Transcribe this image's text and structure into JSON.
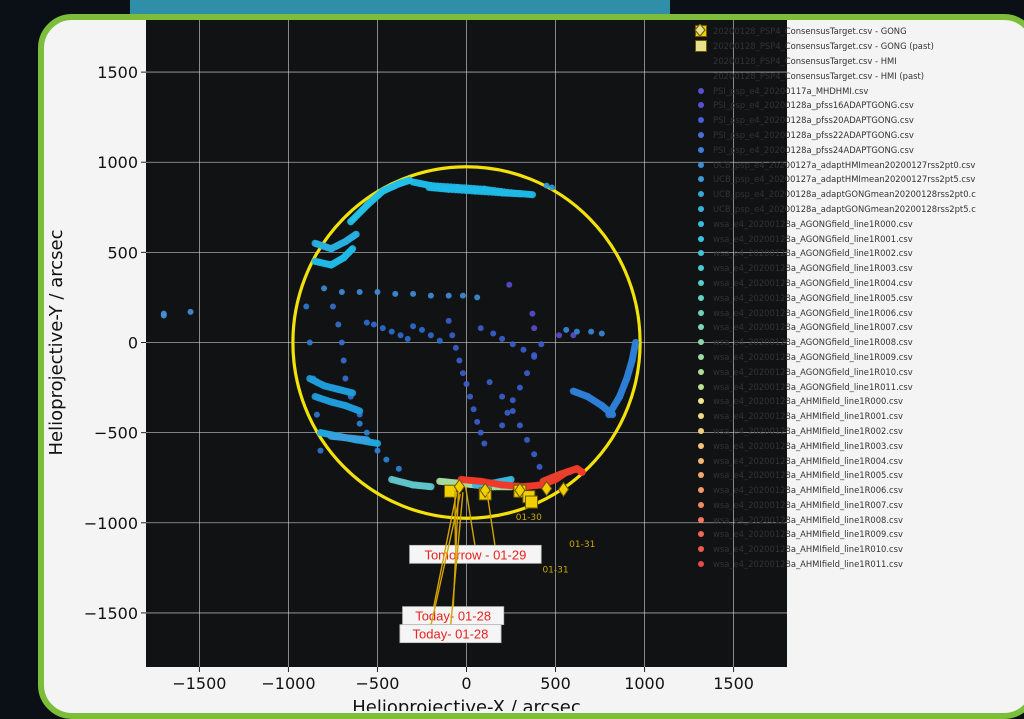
{
  "chart_data": {
    "type": "scatter",
    "xlabel": "Helioprojective-X / arcsec",
    "ylabel": "Helioprojective-Y / arcsec",
    "xlim": [
      -1800,
      1800
    ],
    "ylim": [
      -1800,
      1800
    ],
    "xticks": [
      "−1500",
      "−1000",
      "−500",
      "0",
      "500",
      "1000",
      "1500"
    ],
    "xtick_values": [
      -1500,
      -1000,
      -500,
      0,
      500,
      1000,
      1500
    ],
    "yticks": [
      "1500",
      "1000",
      "500",
      "0",
      "−500",
      "−1000",
      "−1500"
    ],
    "ytick_values": [
      1500,
      1000,
      500,
      0,
      -500,
      -1000,
      -1500
    ],
    "sun_radius": 975,
    "grid": true,
    "legend_position": "right, outside",
    "legend": [
      {
        "label": "20200128_PSP4_ConsensusTarget.csv - GONG",
        "color": "#f2d000",
        "marker": "square"
      },
      {
        "label": "20200128_PSP4_ConsensusTarget.csv - GONG (past)",
        "color": "#e8e08a",
        "marker": "square"
      },
      {
        "label": "20200128_PSP4_ConsensusTarget.csv - HMI",
        "color": "#f2d000",
        "marker": "diamond"
      },
      {
        "label": "20200128_PSP4_ConsensusTarget.csv - HMI (past)",
        "color": "#e8e08a",
        "marker": "diamond"
      },
      {
        "label": "PSI_psp_e4_20200117a_MHDHMI.csv",
        "color": "#5a4fcf",
        "marker": "dot"
      },
      {
        "label": "PSI_psp_e4_20200128a_pfss16ADAPTGONG.csv",
        "color": "#5a4fcf",
        "marker": "dot"
      },
      {
        "label": "PSI_psp_e4_20200128a_pfss20ADAPTGONG.csv",
        "color": "#4a5fd6",
        "marker": "dot"
      },
      {
        "label": "PSI_psp_e4_20200128a_pfss22ADAPTGONG.csv",
        "color": "#4a6fd6",
        "marker": "dot"
      },
      {
        "label": "PSI_psp_e4_20200128a_pfss24ADAPTGONG.csv",
        "color": "#3f7fd6",
        "marker": "dot"
      },
      {
        "label": "UCB_psp_e4_20200127a_adaptHMImean20200127rss2pt0.csv",
        "color": "#3d8ed8",
        "marker": "dot"
      },
      {
        "label": "UCB_psp_e4_20200127a_adaptHMImean20200127rss2pt5.csv",
        "color": "#3a9bda",
        "marker": "dot"
      },
      {
        "label": "UCB_psp_e4_20200128a_adaptGONGmean20200128rss2pt0.c",
        "color": "#3aa6dc",
        "marker": "dot"
      },
      {
        "label": "UCB_psp_e4_20200128a_adaptGONGmean20200128rss2pt5.c",
        "color": "#38b2de",
        "marker": "dot"
      },
      {
        "label": "wsa_e4_20200128a_AGONGfield_line1R000.csv",
        "color": "#36bde0",
        "marker": "dot"
      },
      {
        "label": "wsa_e4_20200128a_AGONGfield_line1R001.csv",
        "color": "#38c4de",
        "marker": "dot"
      },
      {
        "label": "wsa_e4_20200128a_AGONGfield_line1R002.csv",
        "color": "#40c8d8",
        "marker": "dot"
      },
      {
        "label": "wsa_e4_20200128a_AGONGfield_line1R003.csv",
        "color": "#4accd2",
        "marker": "dot"
      },
      {
        "label": "wsa_e4_20200128a_AGONGfield_line1R004.csv",
        "color": "#56d0cc",
        "marker": "dot"
      },
      {
        "label": "wsa_e4_20200128a_AGONGfield_line1R005.csv",
        "color": "#62d2c4",
        "marker": "dot"
      },
      {
        "label": "wsa_e4_20200128a_AGONGfield_line1R006.csv",
        "color": "#70d4bc",
        "marker": "dot"
      },
      {
        "label": "wsa_e4_20200128a_AGONGfield_line1R007.csv",
        "color": "#80d6b4",
        "marker": "dot"
      },
      {
        "label": "wsa_e4_20200128a_AGONGfield_line1R008.csv",
        "color": "#90d8ac",
        "marker": "dot"
      },
      {
        "label": "wsa_e4_20200128a_AGONGfield_line1R009.csv",
        "color": "#a0daa4",
        "marker": "dot"
      },
      {
        "label": "wsa_e4_20200128a_AGONGfield_line1R010.csv",
        "color": "#b0dc9c",
        "marker": "dot"
      },
      {
        "label": "wsa_e4_20200128a_AGONGfield_line1R011.csv",
        "color": "#c0de94",
        "marker": "dot"
      },
      {
        "label": "wsa_e4_20200128a_AHMIfield_line1R000.csv",
        "color": "#f0e68a",
        "marker": "dot"
      },
      {
        "label": "wsa_e4_20200128a_AHMIfield_line1R001.csv",
        "color": "#f2dc84",
        "marker": "dot"
      },
      {
        "label": "wsa_e4_20200128a_AHMIfield_line1R002.csv",
        "color": "#f4d07e",
        "marker": "dot"
      },
      {
        "label": "wsa_e4_20200128a_AHMIfield_line1R003.csv",
        "color": "#f5c478",
        "marker": "dot"
      },
      {
        "label": "wsa_e4_20200128a_AHMIfield_line1R004.csv",
        "color": "#f6b672",
        "marker": "dot"
      },
      {
        "label": "wsa_e4_20200128a_AHMIfield_line1R005.csv",
        "color": "#f6a86c",
        "marker": "dot"
      },
      {
        "label": "wsa_e4_20200128a_AHMIfield_line1R006.csv",
        "color": "#f59a66",
        "marker": "dot"
      },
      {
        "label": "wsa_e4_20200128a_AHMIfield_line1R007.csv",
        "color": "#f48a60",
        "marker": "dot"
      },
      {
        "label": "wsa_e4_20200128a_AHMIfield_line1R008.csv",
        "color": "#f27a5a",
        "marker": "dot"
      },
      {
        "label": "wsa_e4_20200128a_AHMIfield_line1R009.csv",
        "color": "#f06a54",
        "marker": "dot"
      },
      {
        "label": "wsa_e4_20200128a_AHMIfield_line1R010.csv",
        "color": "#ee5a4e",
        "marker": "dot"
      },
      {
        "label": "wsa_e4_20200128a_AHMIfield_line1R011.csv",
        "color": "#ec4848",
        "marker": "dot"
      }
    ],
    "targets": [
      {
        "label": "Tomorrow - 01-29",
        "x": 50,
        "y": -1175,
        "anchor_x": [
          -65,
          -5,
          115
        ],
        "anchor_y": [
          -820,
          -800,
          -830
        ]
      },
      {
        "label": "Today- 01-28",
        "x": -75,
        "y": -1515,
        "anchor_x": [
          -55,
          -45
        ],
        "anchor_y": [
          -830,
          -830
        ]
      },
      {
        "label": "Today- 01-28",
        "x": -90,
        "y": -1615,
        "anchor_x": [
          -35,
          -20
        ],
        "anchor_y": [
          -840,
          -830
        ]
      }
    ],
    "date_labels": [
      {
        "text": "01-30",
        "x": 350,
        "y": -985
      },
      {
        "text": "01-31",
        "x": 650,
        "y": -1135
      },
      {
        "text": "01-31",
        "x": 500,
        "y": -1275
      }
    ],
    "squares": [
      [
        -90,
        -825
      ],
      [
        105,
        -840
      ],
      [
        300,
        -825
      ],
      [
        350,
        -855
      ],
      [
        365,
        -885
      ]
    ],
    "diamonds": [
      [
        -40,
        -800
      ],
      [
        105,
        -820
      ],
      [
        300,
        -820
      ],
      [
        450,
        -810
      ],
      [
        545,
        -815
      ]
    ],
    "tracks": [
      {
        "color": "#1fb8e6",
        "points": [
          [
            -300,
            890
          ],
          [
            -200,
            870
          ],
          [
            -50,
            860
          ],
          [
            100,
            850
          ],
          [
            250,
            830
          ],
          [
            370,
            820
          ]
        ]
      },
      {
        "color": "#1fb8e6",
        "points": [
          [
            -210,
            860
          ],
          [
            -100,
            850
          ],
          [
            50,
            840
          ],
          [
            200,
            830
          ],
          [
            300,
            825
          ]
        ]
      },
      {
        "color": "#23c0e8",
        "points": [
          [
            -650,
            670
          ],
          [
            -560,
            760
          ],
          [
            -470,
            840
          ],
          [
            -380,
            880
          ],
          [
            -320,
            900
          ]
        ]
      },
      {
        "color": "#29aee0",
        "points": [
          [
            -850,
            550
          ],
          [
            -760,
            520
          ],
          [
            -680,
            560
          ],
          [
            -620,
            600
          ]
        ]
      },
      {
        "color": "#1fb8e6",
        "points": [
          [
            -850,
            450
          ],
          [
            -760,
            430
          ],
          [
            -690,
            470
          ],
          [
            -640,
            520
          ]
        ]
      },
      {
        "color": "#1e9bd8",
        "points": [
          [
            -880,
            -200
          ],
          [
            -800,
            -240
          ],
          [
            -720,
            -260
          ],
          [
            -640,
            -280
          ]
        ]
      },
      {
        "color": "#1e9bd8",
        "points": [
          [
            -850,
            -300
          ],
          [
            -760,
            -330
          ],
          [
            -680,
            -350
          ],
          [
            -600,
            -380
          ]
        ]
      },
      {
        "color": "#1ea8e0",
        "points": [
          [
            -820,
            -500
          ],
          [
            -720,
            -520
          ],
          [
            -620,
            -540
          ],
          [
            -500,
            -560
          ]
        ]
      },
      {
        "color": "#5fc4c8",
        "points": [
          [
            -420,
            -760
          ],
          [
            -300,
            -790
          ],
          [
            -200,
            -800
          ]
        ]
      },
      {
        "color": "#a8dba0",
        "points": [
          [
            -150,
            -770
          ],
          [
            -50,
            -780
          ],
          [
            50,
            -790
          ],
          [
            150,
            -800
          ],
          [
            250,
            -800
          ]
        ]
      },
      {
        "color": "#36b8e0",
        "points": [
          [
            50,
            -790
          ],
          [
            150,
            -780
          ],
          [
            250,
            -760
          ]
        ]
      },
      {
        "color": "#f03a2a",
        "points": [
          [
            -30,
            -760
          ],
          [
            80,
            -770
          ],
          [
            200,
            -790
          ],
          [
            320,
            -800
          ],
          [
            420,
            -790
          ],
          [
            500,
            -760
          ],
          [
            560,
            -720
          ],
          [
            620,
            -700
          ],
          [
            650,
            -720
          ]
        ]
      },
      {
        "color": "#e8402e",
        "points": [
          [
            430,
            -770
          ],
          [
            480,
            -750
          ],
          [
            530,
            -730
          ],
          [
            580,
            -715
          ]
        ]
      },
      {
        "color": "#2e7fd6",
        "points": [
          [
            800,
            -400
          ],
          [
            860,
            -300
          ],
          [
            900,
            -200
          ],
          [
            930,
            -100
          ],
          [
            950,
            0
          ]
        ]
      },
      {
        "color": "#2e7fd6",
        "points": [
          [
            600,
            -270
          ],
          [
            680,
            -300
          ],
          [
            760,
            -350
          ],
          [
            820,
            -400
          ]
        ]
      },
      {
        "color": "#3aa0dc",
        "points": [
          [
            -760,
            -520
          ],
          [
            -660,
            -530
          ],
          [
            -560,
            -540
          ]
        ]
      }
    ],
    "scatter": [
      {
        "color": "#4a8fd8",
        "points": [
          [
            -1700,
            160
          ],
          [
            -1550,
            170
          ],
          [
            -1700,
            150
          ]
        ]
      },
      {
        "color": "#3e8fd8",
        "points": [
          [
            -800,
            300
          ],
          [
            -700,
            280
          ],
          [
            -600,
            280
          ],
          [
            -500,
            280
          ],
          [
            -400,
            270
          ],
          [
            -300,
            270
          ],
          [
            -200,
            260
          ],
          [
            -100,
            260
          ],
          [
            -20,
            260
          ],
          [
            60,
            250
          ]
        ]
      },
      {
        "color": "#3a70d0",
        "points": [
          [
            -750,
            200
          ],
          [
            -720,
            100
          ],
          [
            -700,
            0
          ],
          [
            -690,
            -100
          ],
          [
            -680,
            -200
          ],
          [
            -650,
            -300
          ],
          [
            -600,
            -400
          ]
        ]
      },
      {
        "color": "#2e6ed4",
        "points": [
          [
            -560,
            110
          ],
          [
            -520,
            100
          ],
          [
            -470,
            80
          ],
          [
            -420,
            60
          ],
          [
            -370,
            40
          ],
          [
            -330,
            20
          ]
        ]
      },
      {
        "color": "#3d5fcf",
        "points": [
          [
            -100,
            120
          ],
          [
            -80,
            40
          ],
          [
            -60,
            -30
          ],
          [
            -40,
            -100
          ],
          [
            -20,
            -170
          ],
          [
            0,
            -230
          ],
          [
            20,
            -300
          ],
          [
            40,
            -370
          ],
          [
            60,
            -440
          ],
          [
            80,
            -500
          ],
          [
            100,
            -560
          ]
        ]
      },
      {
        "color": "#3d5fcf",
        "points": [
          [
            80,
            80
          ],
          [
            150,
            50
          ],
          [
            200,
            20
          ],
          [
            260,
            -10
          ],
          [
            320,
            -40
          ],
          [
            380,
            -70
          ]
        ]
      },
      {
        "color": "#3d5fcf",
        "points": [
          [
            130,
            -220
          ],
          [
            200,
            -300
          ],
          [
            260,
            -380
          ],
          [
            300,
            -460
          ],
          [
            340,
            -540
          ],
          [
            380,
            -620
          ],
          [
            410,
            -690
          ]
        ]
      },
      {
        "color": "#3d5fcf",
        "points": [
          [
            420,
            -10
          ],
          [
            380,
            -80
          ],
          [
            340,
            -170
          ],
          [
            300,
            -250
          ],
          [
            260,
            -320
          ],
          [
            230,
            -390
          ],
          [
            200,
            -460
          ]
        ]
      },
      {
        "color": "#5a4fcf",
        "points": [
          [
            380,
            80
          ],
          [
            240,
            320
          ],
          [
            370,
            160
          ],
          [
            520,
            40
          ],
          [
            600,
            40
          ]
        ]
      },
      {
        "color": "#3a8bd8",
        "points": [
          [
            560,
            70
          ],
          [
            620,
            60
          ],
          [
            700,
            60
          ],
          [
            760,
            50
          ]
        ]
      },
      {
        "color": "#2e6ed4",
        "points": [
          [
            -300,
            90
          ],
          [
            -250,
            70
          ],
          [
            -200,
            40
          ],
          [
            -150,
            10
          ]
        ]
      },
      {
        "color": "#2e9bdc",
        "points": [
          [
            450,
            870
          ],
          [
            480,
            860
          ]
        ]
      },
      {
        "color": "#2f7ad6",
        "points": [
          [
            -900,
            200
          ],
          [
            -880,
            0
          ],
          [
            -860,
            -200
          ],
          [
            -840,
            -400
          ],
          [
            -820,
            -600
          ]
        ]
      },
      {
        "color": "#2a86d8",
        "points": [
          [
            -600,
            -450
          ],
          [
            -560,
            -500
          ],
          [
            -500,
            -600
          ],
          [
            -450,
            -650
          ],
          [
            -380,
            -700
          ]
        ]
      }
    ]
  }
}
